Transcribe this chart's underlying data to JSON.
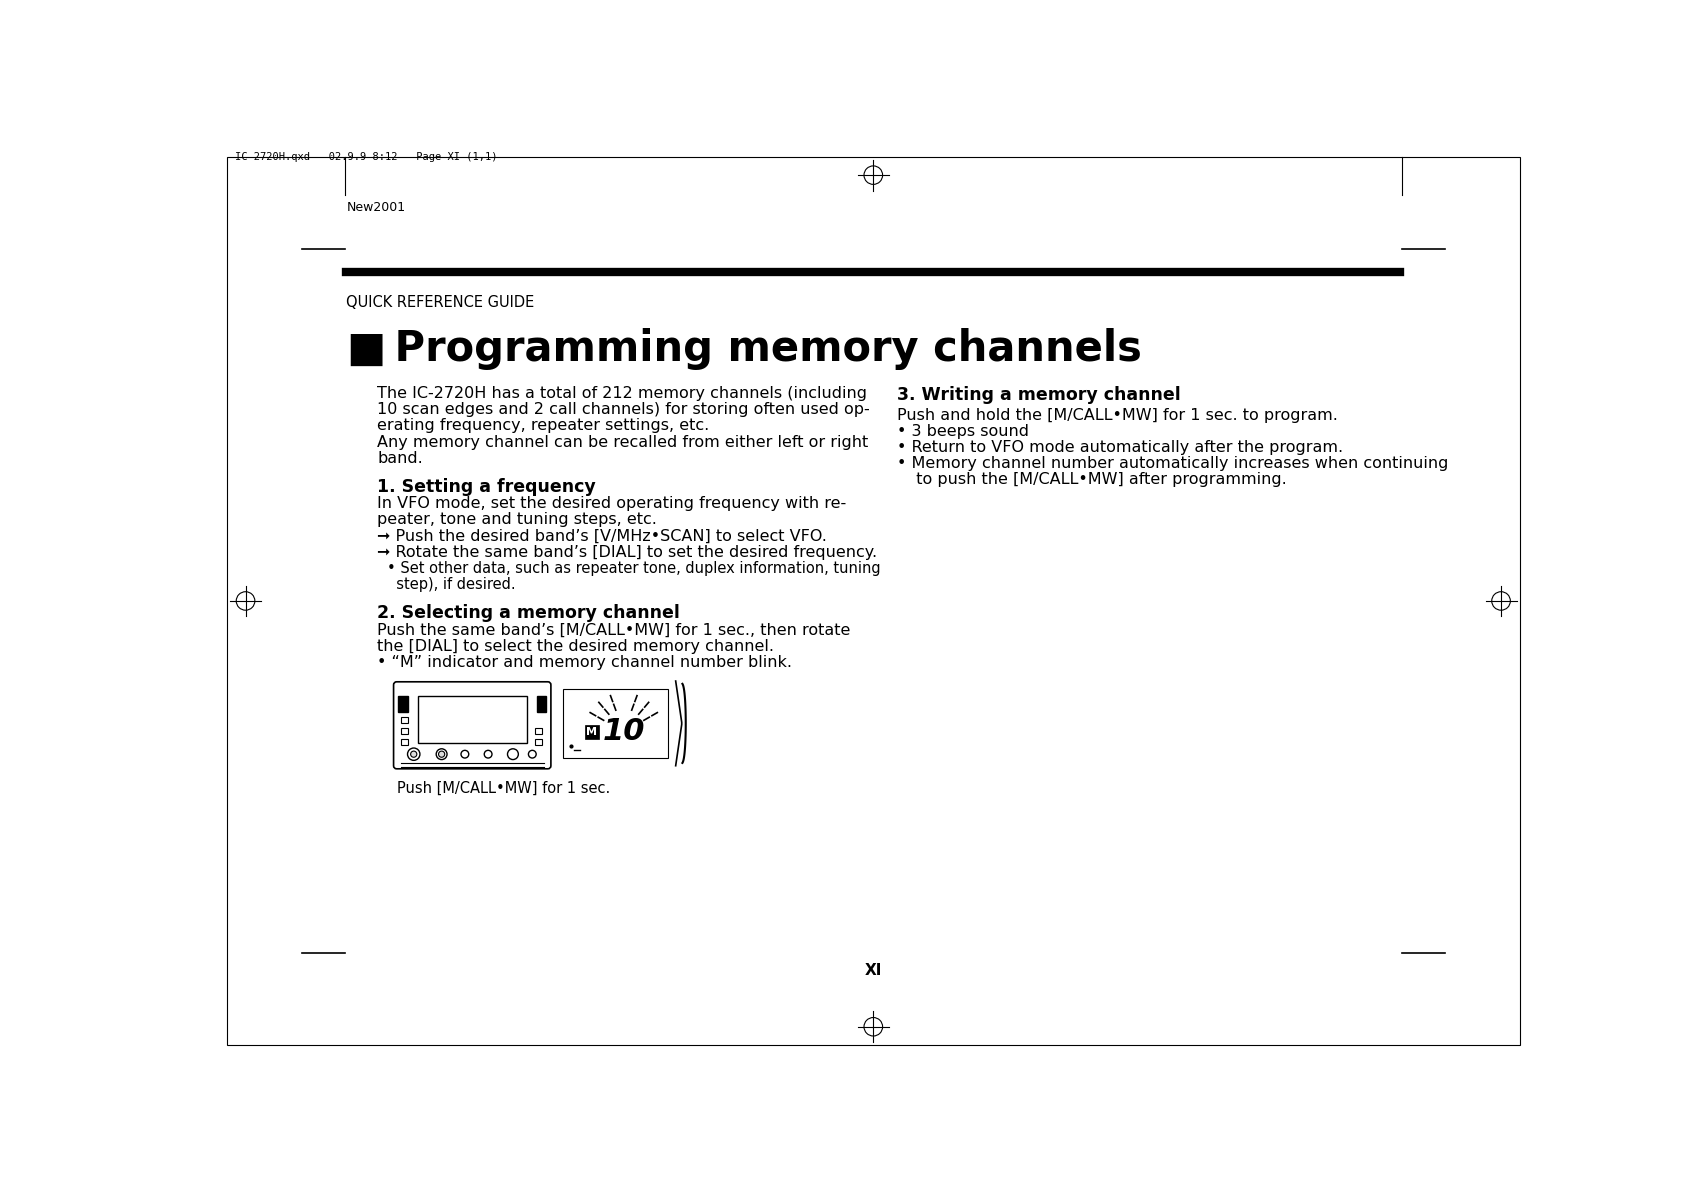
{
  "bg_color": "#ffffff",
  "header_file_text": "IC-2720H.qxd   02.9.9 8:12   Page XI (1,1)",
  "new2001_text": "New2001",
  "section_label": "QUICK REFERENCE GUIDE",
  "title_bullet": "■",
  "title_text": " Programming memory channels",
  "col1_intro": [
    "The IC-2720H has a total of 212 memory channels (including",
    "10 scan edges and 2 call channels) for storing often used op-",
    "erating frequency, repeater settings, etc.",
    "Any memory channel can be recalled from either left or right",
    "band."
  ],
  "section1_head": "1. Setting a frequency",
  "section1_body_plain": [
    "In VFO mode, set the desired operating frequency with re-",
    "peater, tone and tuning steps, etc."
  ],
  "section1_arrows": [
    "➞ Push the desired band’s [V/MHz•SCAN] to select VFO.",
    "➞ Rotate the same band’s [DIAL] to set the desired frequency."
  ],
  "section1_bullet": [
    "• Set other data, such as repeater tone, duplex information, tuning",
    "  step), if desired."
  ],
  "section2_head": "2. Selecting a memory channel",
  "section2_body": [
    "Push the same band’s [M/CALL•MW] for 1 sec., then rotate",
    "the [DIAL] to select the desired memory channel."
  ],
  "section2_bullet": "• “M” indicator and memory channel number blink.",
  "image_caption": "Push [M/CALL•MW] for 1 sec.",
  "col2_head": "3. Writing a memory channel",
  "col2_first": "Push and hold the [M/CALL•MW] for 1 sec. to program.",
  "col2_bullets": [
    "• 3 beeps sound",
    "• Return to VFO mode automatically after the program.",
    "• Memory channel number automatically increases when continuing",
    "  to push the [M/CALL•MW] after programming."
  ],
  "footer_text": "XI"
}
